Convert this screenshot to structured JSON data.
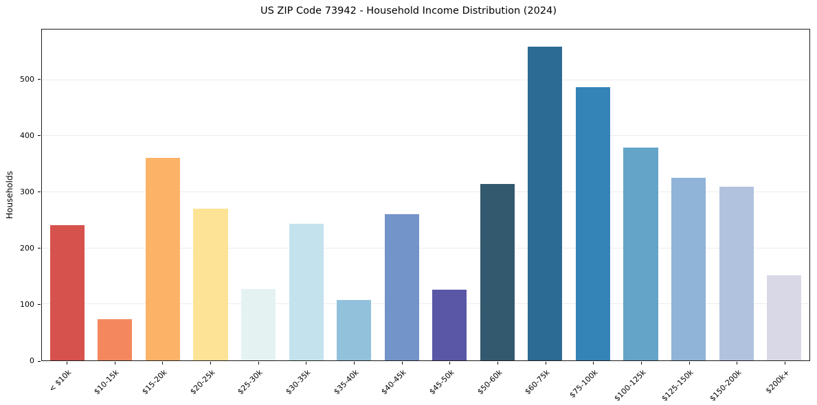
{
  "chart_data": {
    "type": "bar",
    "title": "US ZIP Code 73942 - Household Income Distribution (2024)",
    "xlabel": "",
    "ylabel": "Households",
    "ylim": [
      0,
      590
    ],
    "yticks": [
      0,
      100,
      200,
      300,
      400,
      500
    ],
    "grid": "horizontal",
    "legend": "none",
    "categories": [
      "< $10k",
      "$10-15k",
      "$15-20k",
      "$20-25k",
      "$25-30k",
      "$30-35k",
      "$35-40k",
      "$40-45k",
      "$45-50k",
      "$50-60k",
      "$60-75k",
      "$75-100k",
      "$100-125k",
      "$125-150k",
      "$150-200k",
      "$200k+"
    ],
    "values": [
      241,
      73,
      361,
      271,
      127,
      243,
      108,
      261,
      126,
      314,
      559,
      487,
      379,
      326,
      310,
      152
    ],
    "colors": [
      "#d6524c",
      "#f5875f",
      "#fcb368",
      "#fde395",
      "#e4f3f1",
      "#c3e2ee",
      "#92c1dc",
      "#7394c9",
      "#5a57a6",
      "#33596e",
      "#2c6b93",
      "#3484b8",
      "#64a4c9",
      "#8fb4d7",
      "#b0c2de",
      "#d9d8e7"
    ]
  }
}
